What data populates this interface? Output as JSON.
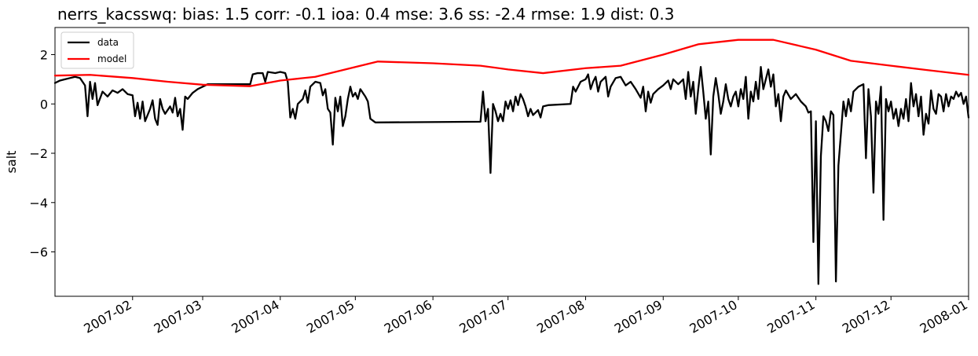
{
  "chart_data": {
    "type": "line",
    "title": "nerrs_kacsswq: bias: 1.5  corr: -0.1  ioa: 0.4  mse: 3.6  ss: -2.4  rmse: 1.9  dist: 0.3",
    "xlabel": "",
    "ylabel": "salt",
    "xlim": [
      "2007-01-01",
      "2008-01-01"
    ],
    "ylim": [
      -7.8,
      3.1
    ],
    "grid": false,
    "legend_position": "top-left",
    "x_ticks": [
      "2007-02",
      "2007-03",
      "2007-04",
      "2007-05",
      "2007-06",
      "2007-07",
      "2007-08",
      "2007-09",
      "2007-10",
      "2007-11",
      "2007-12",
      "2008-01"
    ],
    "y_ticks": [
      2,
      0,
      -2,
      -4,
      -6
    ],
    "y_tick_labels": [
      "2",
      "0",
      "−2",
      "−4",
      "−6"
    ],
    "series": [
      {
        "name": "data",
        "color": "#000000",
        "points": [
          [
            "2007-01-01",
            0.85
          ],
          [
            "2007-01-03",
            0.95
          ],
          [
            "2007-01-05",
            1.0
          ],
          [
            "2007-01-07",
            1.05
          ],
          [
            "2007-01-09",
            1.1
          ],
          [
            "2007-01-11",
            1.05
          ],
          [
            "2007-01-13",
            0.75
          ],
          [
            "2007-01-14",
            -0.5
          ],
          [
            "2007-01-15",
            0.9
          ],
          [
            "2007-01-16",
            0.2
          ],
          [
            "2007-01-17",
            0.85
          ],
          [
            "2007-01-18",
            -0.05
          ],
          [
            "2007-01-20",
            0.5
          ],
          [
            "2007-01-22",
            0.3
          ],
          [
            "2007-01-24",
            0.55
          ],
          [
            "2007-01-26",
            0.45
          ],
          [
            "2007-01-28",
            0.6
          ],
          [
            "2007-01-30",
            0.4
          ],
          [
            "2007-02-01",
            0.35
          ],
          [
            "2007-02-02",
            -0.5
          ],
          [
            "2007-02-03",
            0.05
          ],
          [
            "2007-02-04",
            -0.6
          ],
          [
            "2007-02-05",
            0.1
          ],
          [
            "2007-02-06",
            -0.7
          ],
          [
            "2007-02-08",
            -0.2
          ],
          [
            "2007-02-09",
            0.15
          ],
          [
            "2007-02-10",
            -0.6
          ],
          [
            "2007-02-11",
            -0.85
          ],
          [
            "2007-02-12",
            0.2
          ],
          [
            "2007-02-13",
            -0.2
          ],
          [
            "2007-02-14",
            -0.4
          ],
          [
            "2007-02-16",
            -0.1
          ],
          [
            "2007-02-17",
            -0.35
          ],
          [
            "2007-02-18",
            0.25
          ],
          [
            "2007-02-19",
            -0.5
          ],
          [
            "2007-02-20",
            -0.2
          ],
          [
            "2007-02-21",
            -1.05
          ],
          [
            "2007-02-22",
            0.3
          ],
          [
            "2007-02-23",
            0.2
          ],
          [
            "2007-02-25",
            0.45
          ],
          [
            "2007-02-27",
            0.6
          ],
          [
            "2007-03-01",
            0.7
          ],
          [
            "2007-03-03",
            0.8
          ],
          [
            "2007-03-20",
            0.8
          ],
          [
            "2007-03-21",
            1.2
          ],
          [
            "2007-03-23",
            1.25
          ],
          [
            "2007-03-25",
            1.25
          ],
          [
            "2007-03-26",
            0.9
          ],
          [
            "2007-03-27",
            1.3
          ],
          [
            "2007-03-30",
            1.25
          ],
          [
            "2007-04-01",
            1.3
          ],
          [
            "2007-04-03",
            1.25
          ],
          [
            "2007-04-04",
            0.9
          ],
          [
            "2007-04-05",
            -0.55
          ],
          [
            "2007-04-06",
            -0.2
          ],
          [
            "2007-04-07",
            -0.6
          ],
          [
            "2007-04-08",
            0.0
          ],
          [
            "2007-04-10",
            0.2
          ],
          [
            "2007-04-11",
            0.55
          ],
          [
            "2007-04-12",
            0.05
          ],
          [
            "2007-04-13",
            0.7
          ],
          [
            "2007-04-15",
            0.9
          ],
          [
            "2007-04-17",
            0.85
          ],
          [
            "2007-04-18",
            0.35
          ],
          [
            "2007-04-19",
            0.6
          ],
          [
            "2007-04-20",
            -0.2
          ],
          [
            "2007-04-21",
            -0.35
          ],
          [
            "2007-04-22",
            -1.65
          ],
          [
            "2007-04-23",
            0.25
          ],
          [
            "2007-04-24",
            -0.3
          ],
          [
            "2007-04-25",
            0.3
          ],
          [
            "2007-04-26",
            -0.9
          ],
          [
            "2007-04-27",
            -0.5
          ],
          [
            "2007-04-28",
            0.2
          ],
          [
            "2007-04-29",
            0.7
          ],
          [
            "2007-04-30",
            0.3
          ],
          [
            "2007-05-01",
            0.45
          ],
          [
            "2007-05-02",
            0.2
          ],
          [
            "2007-05-03",
            0.6
          ],
          [
            "2007-05-05",
            0.3
          ],
          [
            "2007-05-06",
            0.1
          ],
          [
            "2007-05-07",
            -0.6
          ],
          [
            "2007-05-09",
            -0.75
          ],
          [
            "2007-06-20",
            -0.72
          ],
          [
            "2007-06-21",
            0.5
          ],
          [
            "2007-06-22",
            -0.7
          ],
          [
            "2007-06-23",
            -0.2
          ],
          [
            "2007-06-24",
            -2.8
          ],
          [
            "2007-06-25",
            0.0
          ],
          [
            "2007-06-26",
            -0.3
          ],
          [
            "2007-06-27",
            -0.7
          ],
          [
            "2007-06-28",
            -0.4
          ],
          [
            "2007-06-29",
            -0.7
          ],
          [
            "2007-06-30",
            0.1
          ],
          [
            "2007-07-01",
            -0.2
          ],
          [
            "2007-07-02",
            0.15
          ],
          [
            "2007-07-03",
            -0.3
          ],
          [
            "2007-07-04",
            0.3
          ],
          [
            "2007-07-05",
            -0.05
          ],
          [
            "2007-07-06",
            0.4
          ],
          [
            "2007-07-07",
            0.2
          ],
          [
            "2007-07-08",
            -0.1
          ],
          [
            "2007-07-09",
            -0.5
          ],
          [
            "2007-07-10",
            -0.2
          ],
          [
            "2007-07-11",
            -0.45
          ],
          [
            "2007-07-13",
            -0.25
          ],
          [
            "2007-07-14",
            -0.55
          ],
          [
            "2007-07-15",
            -0.1
          ],
          [
            "2007-07-17",
            -0.05
          ],
          [
            "2007-07-26",
            0.0
          ],
          [
            "2007-07-27",
            0.7
          ],
          [
            "2007-07-28",
            0.5
          ],
          [
            "2007-07-30",
            0.9
          ],
          [
            "2007-08-01",
            1.0
          ],
          [
            "2007-08-02",
            1.2
          ],
          [
            "2007-08-03",
            0.6
          ],
          [
            "2007-08-04",
            0.9
          ],
          [
            "2007-08-05",
            1.1
          ],
          [
            "2007-08-06",
            0.5
          ],
          [
            "2007-08-07",
            0.9
          ],
          [
            "2007-08-09",
            1.1
          ],
          [
            "2007-08-10",
            0.3
          ],
          [
            "2007-08-11",
            0.7
          ],
          [
            "2007-08-13",
            1.05
          ],
          [
            "2007-08-15",
            1.1
          ],
          [
            "2007-08-17",
            0.75
          ],
          [
            "2007-08-19",
            0.9
          ],
          [
            "2007-08-21",
            0.6
          ],
          [
            "2007-08-23",
            0.25
          ],
          [
            "2007-08-24",
            0.7
          ],
          [
            "2007-08-25",
            -0.3
          ],
          [
            "2007-08-26",
            0.5
          ],
          [
            "2007-08-27",
            0.05
          ],
          [
            "2007-08-28",
            0.4
          ],
          [
            "2007-08-30",
            0.6
          ],
          [
            "2007-09-01",
            0.75
          ],
          [
            "2007-09-03",
            0.95
          ],
          [
            "2007-09-04",
            0.6
          ],
          [
            "2007-09-05",
            1.0
          ],
          [
            "2007-09-07",
            0.8
          ],
          [
            "2007-09-09",
            1.0
          ],
          [
            "2007-09-10",
            0.2
          ],
          [
            "2007-09-11",
            1.3
          ],
          [
            "2007-09-12",
            0.3
          ],
          [
            "2007-09-13",
            0.9
          ],
          [
            "2007-09-14",
            -0.4
          ],
          [
            "2007-09-15",
            0.6
          ],
          [
            "2007-09-16",
            1.5
          ],
          [
            "2007-09-17",
            0.5
          ],
          [
            "2007-09-18",
            -0.6
          ],
          [
            "2007-09-19",
            0.1
          ],
          [
            "2007-09-20",
            -2.05
          ],
          [
            "2007-09-21",
            0.3
          ],
          [
            "2007-09-22",
            1.05
          ],
          [
            "2007-09-23",
            0.4
          ],
          [
            "2007-09-24",
            -0.4
          ],
          [
            "2007-09-25",
            0.1
          ],
          [
            "2007-09-26",
            0.8
          ],
          [
            "2007-09-27",
            0.2
          ],
          [
            "2007-09-28",
            -0.1
          ],
          [
            "2007-09-29",
            0.3
          ],
          [
            "2007-09-30",
            0.5
          ],
          [
            "2007-10-01",
            -0.1
          ],
          [
            "2007-10-02",
            0.6
          ],
          [
            "2007-10-03",
            0.2
          ],
          [
            "2007-10-04",
            1.1
          ],
          [
            "2007-10-05",
            -0.6
          ],
          [
            "2007-10-06",
            0.5
          ],
          [
            "2007-10-07",
            0.1
          ],
          [
            "2007-10-08",
            0.9
          ],
          [
            "2007-10-09",
            0.2
          ],
          [
            "2007-10-10",
            1.5
          ],
          [
            "2007-10-11",
            0.6
          ],
          [
            "2007-10-13",
            1.4
          ],
          [
            "2007-10-14",
            0.7
          ],
          [
            "2007-10-15",
            1.2
          ],
          [
            "2007-10-16",
            -0.1
          ],
          [
            "2007-10-17",
            0.4
          ],
          [
            "2007-10-18",
            -0.7
          ],
          [
            "2007-10-19",
            0.3
          ],
          [
            "2007-10-20",
            0.55
          ],
          [
            "2007-10-22",
            0.2
          ],
          [
            "2007-10-24",
            0.4
          ],
          [
            "2007-10-26",
            0.1
          ],
          [
            "2007-10-28",
            -0.1
          ],
          [
            "2007-10-29",
            -0.35
          ],
          [
            "2007-10-30",
            -0.3
          ],
          [
            "2007-10-31",
            -5.6
          ],
          [
            "2007-11-01",
            -0.7
          ],
          [
            "2007-11-02",
            -7.3
          ],
          [
            "2007-11-03",
            -2.1
          ],
          [
            "2007-11-04",
            -0.5
          ],
          [
            "2007-11-05",
            -0.7
          ],
          [
            "2007-11-06",
            -1.1
          ],
          [
            "2007-11-07",
            -0.3
          ],
          [
            "2007-11-08",
            -0.45
          ],
          [
            "2007-11-09",
            -7.2
          ],
          [
            "2007-11-10",
            -2.5
          ],
          [
            "2007-11-11",
            -1.2
          ],
          [
            "2007-11-12",
            0.1
          ],
          [
            "2007-11-13",
            -0.5
          ],
          [
            "2007-11-14",
            0.2
          ],
          [
            "2007-11-15",
            -0.3
          ],
          [
            "2007-11-16",
            0.5
          ],
          [
            "2007-11-18",
            0.7
          ],
          [
            "2007-11-20",
            0.8
          ],
          [
            "2007-11-21",
            -2.2
          ],
          [
            "2007-11-22",
            0.6
          ],
          [
            "2007-11-23",
            -0.5
          ],
          [
            "2007-11-24",
            -3.6
          ],
          [
            "2007-11-25",
            0.1
          ],
          [
            "2007-11-26",
            -0.4
          ],
          [
            "2007-11-27",
            0.7
          ],
          [
            "2007-11-28",
            -4.7
          ],
          [
            "2007-11-29",
            0.2
          ],
          [
            "2007-11-30",
            -0.3
          ],
          [
            "2007-12-01",
            0.1
          ],
          [
            "2007-12-02",
            -0.6
          ],
          [
            "2007-12-03",
            -0.2
          ],
          [
            "2007-12-04",
            -0.9
          ],
          [
            "2007-12-05",
            -0.2
          ],
          [
            "2007-12-06",
            -0.6
          ],
          [
            "2007-12-07",
            0.2
          ],
          [
            "2007-12-08",
            -0.7
          ],
          [
            "2007-12-09",
            0.85
          ],
          [
            "2007-12-10",
            -0.1
          ],
          [
            "2007-12-11",
            0.4
          ],
          [
            "2007-12-12",
            -0.5
          ],
          [
            "2007-12-13",
            0.3
          ],
          [
            "2007-12-14",
            -1.25
          ],
          [
            "2007-12-15",
            -0.4
          ],
          [
            "2007-12-16",
            -0.8
          ],
          [
            "2007-12-17",
            0.55
          ],
          [
            "2007-12-18",
            -0.2
          ],
          [
            "2007-12-19",
            -0.4
          ],
          [
            "2007-12-20",
            0.4
          ],
          [
            "2007-12-21",
            0.3
          ],
          [
            "2007-12-22",
            -0.3
          ],
          [
            "2007-12-23",
            0.4
          ],
          [
            "2007-12-24",
            -0.1
          ],
          [
            "2007-12-25",
            0.3
          ],
          [
            "2007-12-26",
            0.2
          ],
          [
            "2007-12-27",
            0.5
          ],
          [
            "2007-12-28",
            0.3
          ],
          [
            "2007-12-29",
            0.45
          ],
          [
            "2007-12-30",
            0.0
          ],
          [
            "2007-12-31",
            0.3
          ],
          [
            "2008-01-01",
            -0.55
          ]
        ]
      },
      {
        "name": "model",
        "color": "#ff0000",
        "points": [
          [
            "2007-01-01",
            1.15
          ],
          [
            "2007-01-15",
            1.18
          ],
          [
            "2007-02-01",
            1.05
          ],
          [
            "2007-02-15",
            0.9
          ],
          [
            "2007-03-01",
            0.78
          ],
          [
            "2007-03-20",
            0.72
          ],
          [
            "2007-04-01",
            0.95
          ],
          [
            "2007-04-15",
            1.1
          ],
          [
            "2007-05-01",
            1.5
          ],
          [
            "2007-05-10",
            1.72
          ],
          [
            "2007-06-01",
            1.65
          ],
          [
            "2007-06-20",
            1.55
          ],
          [
            "2007-07-01",
            1.4
          ],
          [
            "2007-07-15",
            1.25
          ],
          [
            "2007-08-01",
            1.45
          ],
          [
            "2007-08-15",
            1.55
          ],
          [
            "2007-09-01",
            2.0
          ],
          [
            "2007-09-15",
            2.42
          ],
          [
            "2007-10-01",
            2.6
          ],
          [
            "2007-10-15",
            2.6
          ],
          [
            "2007-11-01",
            2.2
          ],
          [
            "2007-11-15",
            1.75
          ],
          [
            "2007-12-01",
            1.55
          ],
          [
            "2007-12-15",
            1.38
          ],
          [
            "2008-01-01",
            1.18
          ]
        ]
      }
    ]
  }
}
